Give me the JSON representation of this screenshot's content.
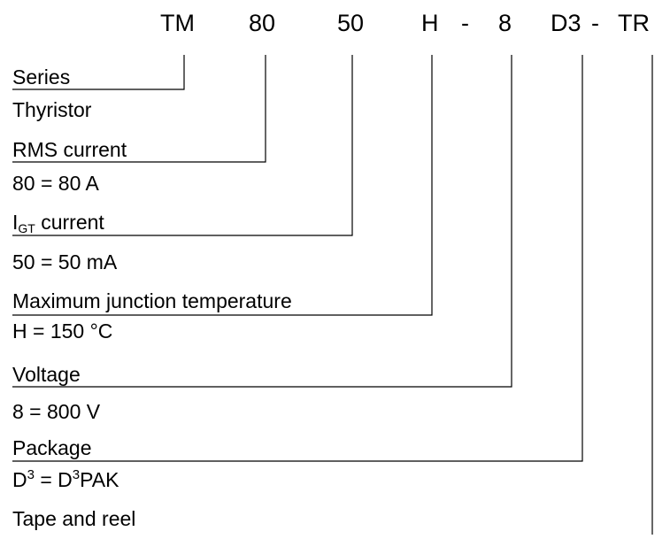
{
  "code": {
    "tm": "TM",
    "current": "80",
    "igt": "50",
    "temp": "H",
    "dash1": "-",
    "voltage": "8",
    "package": "D3",
    "dash2": "-",
    "packing": "TR"
  },
  "fields": {
    "series": {
      "label": "Series",
      "value": "Thyristor"
    },
    "rms_current": {
      "label": "RMS current",
      "value": "80 = 80 A"
    },
    "igt_current": {
      "label_main": "I",
      "label_sub": "GT",
      "label_rest": " current",
      "value": "50 = 50 mA"
    },
    "max_temp": {
      "label": "Maximum junction temperature",
      "value": "H = 150 °C"
    },
    "voltage": {
      "label": "Voltage",
      "value": "8 = 800 V"
    },
    "package": {
      "label": "Package",
      "value_a": "D",
      "value_a_sup": "3",
      "value_b": " = D",
      "value_b_sup": "3",
      "value_c": "PAK"
    },
    "packing": {
      "label": "Tape and reel"
    }
  },
  "colors": {
    "text": "#000000",
    "line": "#000000",
    "background": "#ffffff"
  }
}
